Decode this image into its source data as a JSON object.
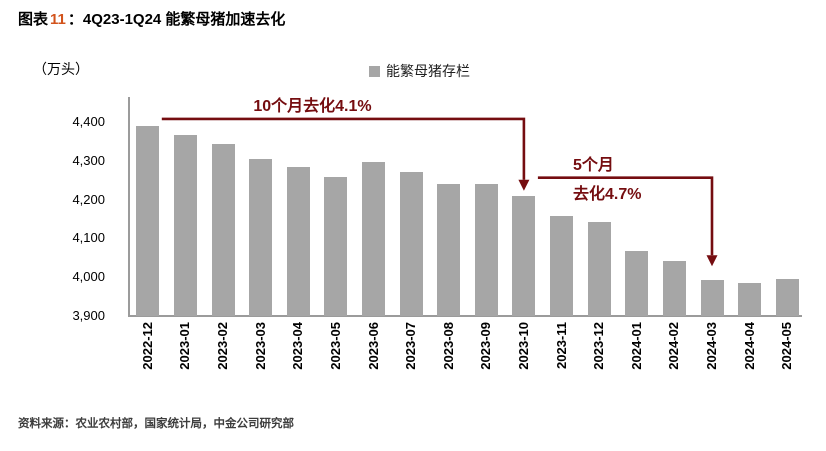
{
  "header": {
    "title_prefix": "图表",
    "title_number": "11",
    "title_rest": "：4Q23-1Q24 能繁母猪加速去化"
  },
  "unit_label": "（万头）",
  "legend": {
    "label": "能繁母猪存栏",
    "marker_color": "#A6A6A6"
  },
  "chart_data": {
    "type": "bar",
    "title": "4Q23-1Q24 能繁母猪加速去化",
    "unit": "万头",
    "series_name": "能繁母猪存栏",
    "categories": [
      "2022-12",
      "2023-01",
      "2023-02",
      "2023-03",
      "2023-04",
      "2023-05",
      "2023-06",
      "2023-07",
      "2023-08",
      "2023-09",
      "2023-10",
      "2023-11",
      "2023-12",
      "2024-01",
      "2024-02",
      "2024-03",
      "2024-04",
      "2024-05"
    ],
    "values": [
      4390,
      4367,
      4343,
      4305,
      4284,
      4258,
      4296,
      4271,
      4241,
      4240,
      4210,
      4158,
      4142,
      4067,
      4042,
      3992,
      3986,
      3996
    ],
    "ylim": [
      3900,
      4400
    ],
    "ytick_step": 100,
    "yticks": [
      "3,900",
      "4,000",
      "4,100",
      "4,200",
      "4,300",
      "4,400"
    ],
    "grid": false,
    "legend_position": "top",
    "bar_color": "#A6A6A6",
    "annotation_color": "#750D10",
    "annotations": [
      {
        "lines": [
          "10个月去化4.1%"
        ],
        "from": "2022-12",
        "to": "2023-10"
      },
      {
        "lines": [
          "5个月",
          "去化4.7%"
        ],
        "from": "2023-10",
        "to": "2024-03"
      }
    ]
  },
  "source": "资料来源：农业农村部，国家统计局，中金公司研究部",
  "colors": {
    "title_number": "#D2531C",
    "annotation": "#750D10",
    "bar": "#A6A6A6",
    "axis": "#9B9B9B"
  }
}
